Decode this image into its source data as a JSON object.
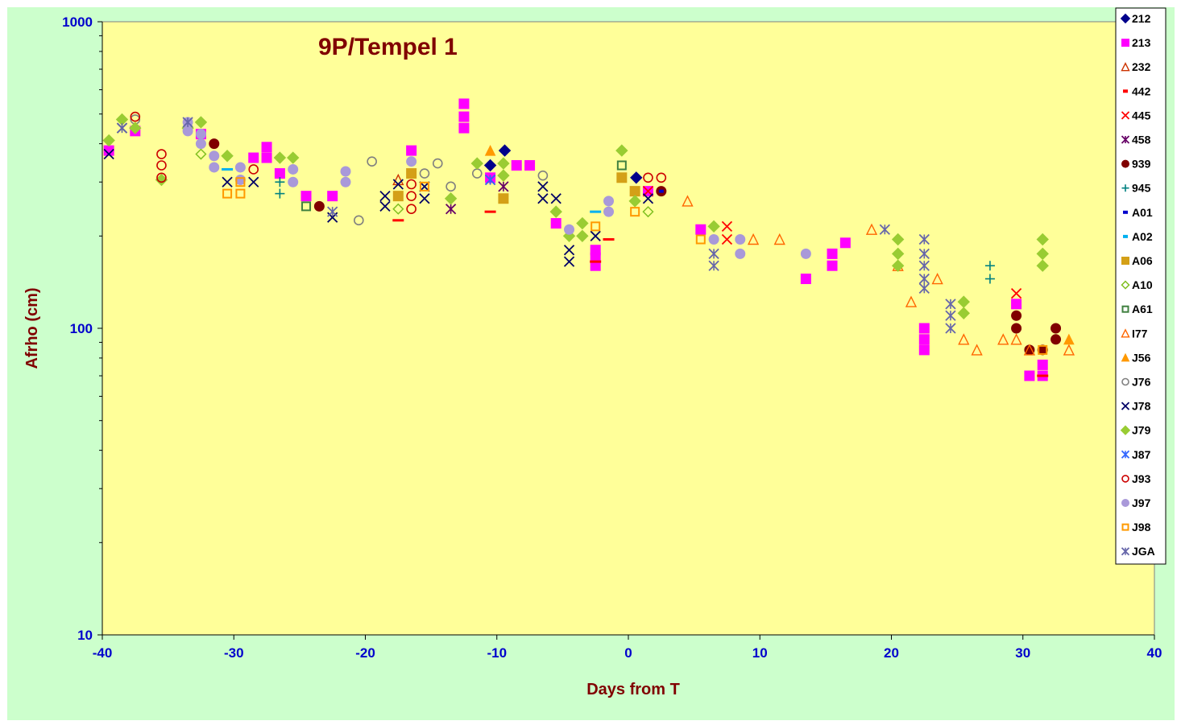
{
  "chart_data": {
    "type": "scatter",
    "title": "9P/Tempel 1",
    "xlabel": "Days from T",
    "ylabel": "Afrho (cm)",
    "xlim": [
      -40,
      40
    ],
    "ylim": [
      10,
      1000
    ],
    "yscale": "log",
    "grid": false,
    "legend": "right",
    "x_ticks": [
      "-40",
      "-30",
      "-20",
      "-10",
      "0",
      "10",
      "20",
      "30",
      "40"
    ],
    "y_ticks": [
      "10",
      "100",
      "1000"
    ],
    "colors": {
      "outer_background": "#ccffcc",
      "plot_background": "#ffff99",
      "tick_labels": "#0000cc",
      "titles": "#800000"
    },
    "series": [
      {
        "name": "212",
        "marker": "diamond-filled",
        "color": "#00008b",
        "points": [
          [
            -10.5,
            340
          ],
          [
            -9.4,
            380
          ],
          [
            0.6,
            310
          ]
        ]
      },
      {
        "name": "213",
        "marker": "square-filled",
        "color": "#ff00ff",
        "points": [
          [
            -39.5,
            380
          ],
          [
            -37.5,
            440
          ],
          [
            -32.5,
            430
          ],
          [
            -28.5,
            360
          ],
          [
            -27.5,
            360
          ],
          [
            -27.5,
            390
          ],
          [
            -26.5,
            320
          ],
          [
            -24.5,
            270
          ],
          [
            -22.5,
            270
          ],
          [
            -16.5,
            380
          ],
          [
            -12.5,
            450
          ],
          [
            -12.5,
            490
          ],
          [
            -12.5,
            540
          ],
          [
            -10.5,
            310
          ],
          [
            -8.5,
            340
          ],
          [
            -7.5,
            340
          ],
          [
            -5.5,
            220
          ],
          [
            -2.5,
            160
          ],
          [
            -2.5,
            170
          ],
          [
            -2.5,
            180
          ],
          [
            1.5,
            280
          ],
          [
            5.5,
            210
          ],
          [
            13.5,
            145
          ],
          [
            15.5,
            160
          ],
          [
            15.5,
            175
          ],
          [
            16.5,
            190
          ],
          [
            22.5,
            85
          ],
          [
            22.5,
            92
          ],
          [
            22.5,
            100
          ],
          [
            29.5,
            120
          ],
          [
            30.5,
            70
          ],
          [
            31.5,
            70
          ],
          [
            31.5,
            76
          ]
        ]
      },
      {
        "name": "232",
        "marker": "triangle-open",
        "color": "#cc3300",
        "points": [
          [
            -17.5,
            305
          ]
        ]
      },
      {
        "name": "442",
        "marker": "dash",
        "color": "#ff0000",
        "points": [
          [
            -17.5,
            225
          ],
          [
            -10.5,
            240
          ],
          [
            -2.5,
            165
          ],
          [
            -1.5,
            195
          ],
          [
            31.5,
            70
          ]
        ]
      },
      {
        "name": "445",
        "marker": "x",
        "color": "#ff0000",
        "points": [
          [
            1.5,
            280
          ],
          [
            7.5,
            195
          ],
          [
            7.5,
            215
          ],
          [
            29.5,
            130
          ]
        ]
      },
      {
        "name": "458",
        "marker": "star",
        "color": "#660066",
        "points": [
          [
            -13.5,
            245
          ],
          [
            -10.5,
            305
          ],
          [
            -9.5,
            290
          ]
        ]
      },
      {
        "name": "939",
        "marker": "circle-filled",
        "color": "#800000",
        "points": [
          [
            -31.5,
            400
          ],
          [
            -23.5,
            250
          ],
          [
            2.5,
            280
          ],
          [
            29.5,
            100
          ],
          [
            29.5,
            110
          ],
          [
            30.5,
            85
          ],
          [
            31.5,
            85
          ],
          [
            32.5,
            92
          ],
          [
            32.5,
            100
          ]
        ]
      },
      {
        "name": "945",
        "marker": "plus",
        "color": "#008080",
        "points": [
          [
            -26.5,
            275
          ],
          [
            -26.5,
            300
          ],
          [
            27.5,
            145
          ],
          [
            27.5,
            160
          ]
        ]
      },
      {
        "name": "A01",
        "marker": "dash-short",
        "color": "#0000cc",
        "points": [
          [
            2.5,
            280
          ]
        ]
      },
      {
        "name": "A02",
        "marker": "dash",
        "color": "#00b0f0",
        "points": [
          [
            -30.5,
            330
          ],
          [
            -2.5,
            240
          ]
        ]
      },
      {
        "name": "A06",
        "marker": "square-filled",
        "color": "#d4a017",
        "points": [
          [
            -17.5,
            270
          ],
          [
            -16.5,
            320
          ],
          [
            -9.5,
            265
          ],
          [
            -0.5,
            310
          ],
          [
            0.5,
            280
          ]
        ]
      },
      {
        "name": "A10",
        "marker": "diamond-open",
        "color": "#7fbf1f",
        "points": [
          [
            -32.5,
            370
          ],
          [
            -17.5,
            245
          ],
          [
            1.5,
            240
          ]
        ]
      },
      {
        "name": "A61",
        "marker": "square-open",
        "color": "#408040",
        "points": [
          [
            -24.5,
            250
          ],
          [
            -0.5,
            340
          ]
        ]
      },
      {
        "name": "I77",
        "marker": "triangle-open",
        "color": "#ff6600",
        "points": [
          [
            4.5,
            260
          ],
          [
            9.5,
            195
          ],
          [
            11.5,
            195
          ],
          [
            18.5,
            210
          ],
          [
            20.5,
            160
          ],
          [
            21.5,
            122
          ],
          [
            23.5,
            145
          ],
          [
            25.5,
            92
          ],
          [
            26.5,
            85
          ],
          [
            28.5,
            92
          ],
          [
            29.5,
            92
          ],
          [
            30.5,
            85
          ],
          [
            33.5,
            85
          ]
        ]
      },
      {
        "name": "J56",
        "marker": "triangle-filled",
        "color": "#ff9900",
        "points": [
          [
            -10.5,
            380
          ],
          [
            33.5,
            92
          ]
        ]
      },
      {
        "name": "J76",
        "marker": "circle-open",
        "color": "#808080",
        "points": [
          [
            -37.5,
            480
          ],
          [
            -20.5,
            225
          ],
          [
            -19.5,
            350
          ],
          [
            -15.5,
            320
          ],
          [
            -14.5,
            345
          ],
          [
            -13.5,
            290
          ],
          [
            -11.5,
            320
          ],
          [
            -6.5,
            315
          ]
        ]
      },
      {
        "name": "J78",
        "marker": "x",
        "color": "#000066",
        "points": [
          [
            -39.5,
            370
          ],
          [
            -38.5,
            450
          ],
          [
            -30.5,
            300
          ],
          [
            -28.5,
            300
          ],
          [
            -22.5,
            230
          ],
          [
            -18.5,
            250
          ],
          [
            -18.5,
            270
          ],
          [
            -17.5,
            295
          ],
          [
            -15.5,
            265
          ],
          [
            -15.5,
            290
          ],
          [
            -6.5,
            265
          ],
          [
            -6.5,
            290
          ],
          [
            -5.5,
            265
          ],
          [
            -4.5,
            165
          ],
          [
            -4.5,
            180
          ],
          [
            -2.5,
            200
          ],
          [
            1.5,
            265
          ]
        ]
      },
      {
        "name": "J79",
        "marker": "diamond-filled",
        "color": "#99cc33",
        "points": [
          [
            -39.5,
            410
          ],
          [
            -38.5,
            480
          ],
          [
            -37.5,
            450
          ],
          [
            -35.5,
            305
          ],
          [
            -33.5,
            450
          ],
          [
            -32.5,
            470
          ],
          [
            -30.5,
            365
          ],
          [
            -25.5,
            360
          ],
          [
            -26.5,
            360
          ],
          [
            -13.5,
            265
          ],
          [
            -11.5,
            345
          ],
          [
            -9.5,
            315
          ],
          [
            -9.5,
            345
          ],
          [
            -5.5,
            240
          ],
          [
            -4.5,
            200
          ],
          [
            -3.5,
            200
          ],
          [
            -3.5,
            220
          ],
          [
            -0.5,
            380
          ],
          [
            0.5,
            260
          ],
          [
            6.5,
            215
          ],
          [
            20.5,
            160
          ],
          [
            20.5,
            175
          ],
          [
            20.5,
            195
          ],
          [
            25.5,
            112
          ],
          [
            25.5,
            122
          ],
          [
            31.5,
            160
          ],
          [
            31.5,
            175
          ],
          [
            31.5,
            195
          ]
        ]
      },
      {
        "name": "J87",
        "marker": "star",
        "color": "#3366ff",
        "points": [
          [
            -10.5,
            305
          ]
        ]
      },
      {
        "name": "J93",
        "marker": "circle-open",
        "color": "#cc0000",
        "points": [
          [
            -37.5,
            490
          ],
          [
            -35.5,
            310
          ],
          [
            -35.5,
            340
          ],
          [
            -35.5,
            370
          ],
          [
            -28.5,
            330
          ],
          [
            -16.5,
            245
          ],
          [
            -16.5,
            270
          ],
          [
            -16.5,
            295
          ],
          [
            1.5,
            310
          ],
          [
            2.5,
            310
          ]
        ]
      },
      {
        "name": "J97",
        "marker": "circle-filled",
        "color": "#a999d9",
        "points": [
          [
            -33.5,
            440
          ],
          [
            -33.5,
            470
          ],
          [
            -32.5,
            400
          ],
          [
            -32.5,
            430
          ],
          [
            -31.5,
            335
          ],
          [
            -31.5,
            365
          ],
          [
            -29.5,
            335
          ],
          [
            -29.5,
            305
          ],
          [
            -25.5,
            300
          ],
          [
            -25.5,
            330
          ],
          [
            -21.5,
            300
          ],
          [
            -21.5,
            325
          ],
          [
            -16.5,
            350
          ],
          [
            -4.5,
            210
          ],
          [
            -1.5,
            240
          ],
          [
            -1.5,
            260
          ],
          [
            6.5,
            195
          ],
          [
            8.5,
            175
          ],
          [
            8.5,
            195
          ],
          [
            13.5,
            175
          ]
        ]
      },
      {
        "name": "J98",
        "marker": "square-open",
        "color": "#ff9900",
        "points": [
          [
            -30.5,
            275
          ],
          [
            -29.5,
            275
          ],
          [
            -29.5,
            300
          ],
          [
            -15.5,
            290
          ],
          [
            -2.5,
            215
          ],
          [
            0.5,
            240
          ],
          [
            5.5,
            195
          ],
          [
            31.5,
            85
          ]
        ]
      },
      {
        "name": "JGA",
        "marker": "star",
        "color": "#6666aa",
        "points": [
          [
            -38.5,
            450
          ],
          [
            -33.5,
            470
          ],
          [
            -22.5,
            240
          ],
          [
            6.5,
            160
          ],
          [
            6.5,
            175
          ],
          [
            19.5,
            210
          ],
          [
            22.5,
            135
          ],
          [
            22.5,
            145
          ],
          [
            22.5,
            160
          ],
          [
            22.5,
            175
          ],
          [
            22.5,
            195
          ],
          [
            24.5,
            100
          ],
          [
            24.5,
            110
          ],
          [
            24.5,
            120
          ]
        ]
      }
    ]
  }
}
